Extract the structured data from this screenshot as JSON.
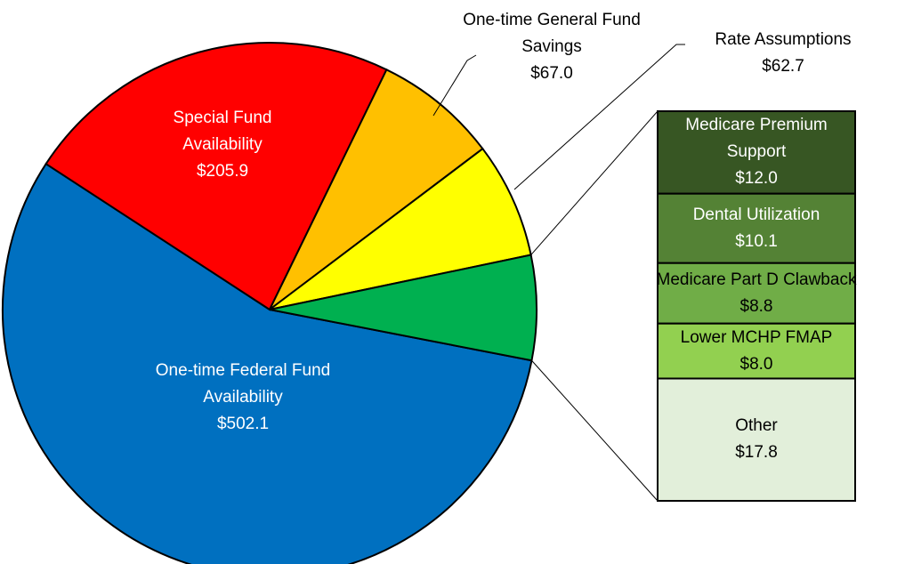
{
  "chart_data": {
    "type": "pie-of-bar",
    "categories": [
      "One-time Federal Fund Availability",
      "Special Fund Availability",
      "One-time General Fund Savings",
      "Rate Assumptions",
      null
    ],
    "values": [
      502.1,
      205.9,
      67.0,
      62.7,
      56.7
    ],
    "value_labels": [
      "$502.1",
      "$205.9",
      "$67.0",
      "$62.7",
      null
    ],
    "colors": [
      "#0070c0",
      "#ff0000",
      "#ffc000",
      "#ffff00",
      "#00b050"
    ],
    "breakout": {
      "categories": [
        "Medicare Premium Support",
        "Dental Utilization",
        "Medicare Part D Clawback",
        "Lower MCHP FMAP",
        "Other"
      ],
      "values": [
        12.0,
        10.1,
        8.8,
        8.0,
        17.8
      ],
      "value_labels": [
        "$12.0",
        "$10.1",
        "$8.8",
        "$8.0",
        "$17.8"
      ],
      "colors": [
        "#375623",
        "#548235",
        "#70ad47",
        "#92d050",
        "#e2efda"
      ]
    }
  }
}
